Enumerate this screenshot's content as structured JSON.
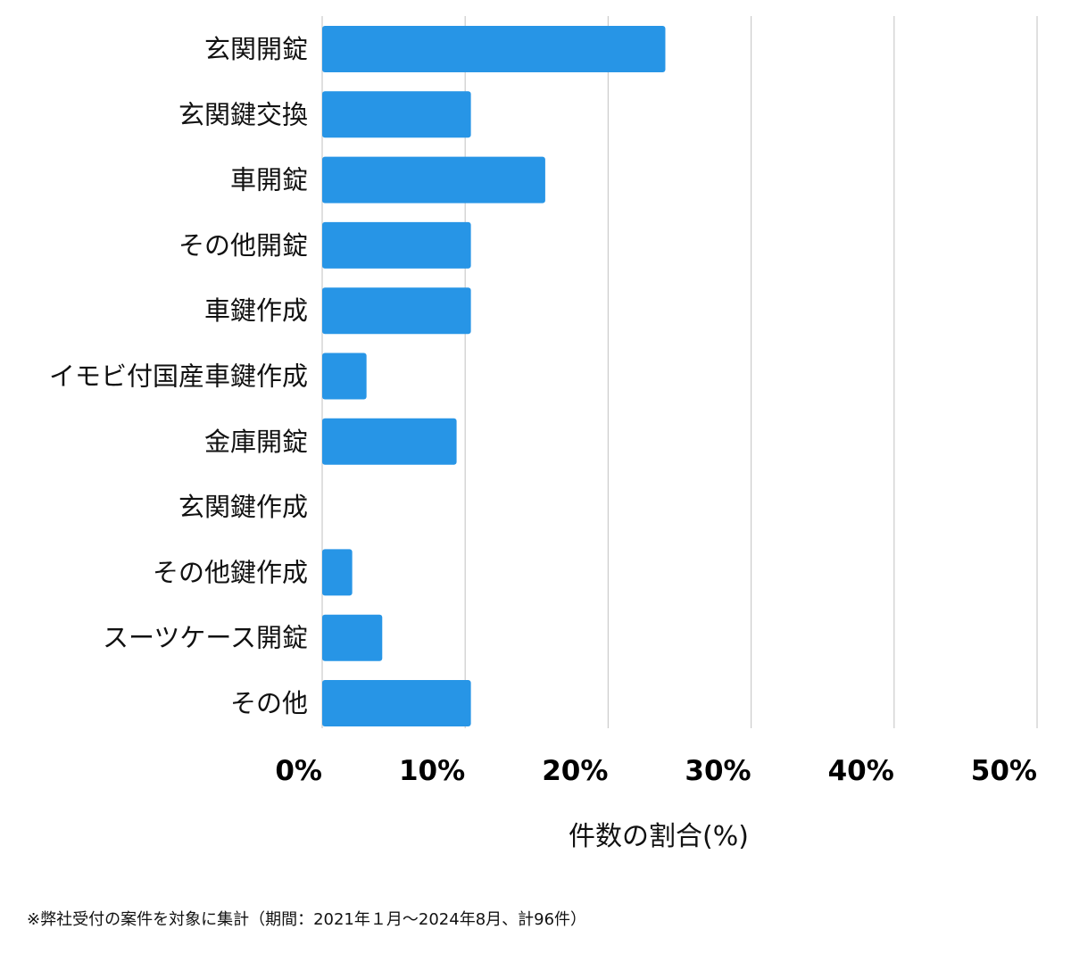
{
  "chart_data": {
    "type": "bar",
    "orientation": "horizontal",
    "categories": [
      "玄関開錠",
      "玄関鍵交換",
      "車開錠",
      "その他開錠",
      "車鍵作成",
      "イモビ付国産車鍵作成",
      "金庫開錠",
      "玄関鍵作成",
      "その他鍵作成",
      "スーツケース開錠",
      "その他"
    ],
    "values": [
      24,
      10.4,
      15.6,
      10.4,
      10.4,
      3.1,
      9.4,
      0,
      2.1,
      4.2,
      10.4
    ],
    "xlabel": "件数の割合(%)",
    "xlim": [
      0,
      50
    ],
    "xticks": [
      0,
      10,
      20,
      30,
      40,
      50
    ],
    "xtick_labels": [
      "0%",
      "10%",
      "20%",
      "30%",
      "40%",
      "50%"
    ],
    "grid": true,
    "bar_color": "#2795e6",
    "grid_color": "#cccccc"
  },
  "footnote": "※弊社受付の案件を対象に集計（期間：2021年１月～2024年8月、計96件）"
}
